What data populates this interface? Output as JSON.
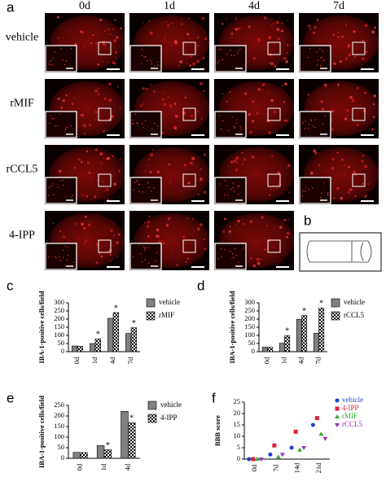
{
  "panel_a": {
    "label": "a",
    "column_labels": [
      "0d",
      "1d",
      "4d",
      "7d"
    ],
    "row_labels": [
      "vehicle",
      "rMIF",
      "rCCL5",
      "4-IPP"
    ]
  },
  "panel_b": {
    "label": "b"
  },
  "chart_data": [
    {
      "type": "bar",
      "panel_label": "c",
      "y_label": "IBA-1-positive cells/field",
      "categories": [
        "0d",
        "1d",
        "4d",
        "7d"
      ],
      "ylim": [
        0,
        300
      ],
      "yticks": [
        0,
        50,
        100,
        150,
        200,
        250,
        300
      ],
      "significance_label": "*",
      "series": [
        {
          "name": "vehicle",
          "color": "#808080",
          "pattern": "solid",
          "values": [
            35,
            50,
            205,
            112
          ],
          "significant": [
            false,
            false,
            false,
            false
          ]
        },
        {
          "name": "rMIF",
          "color": "#ffffff",
          "pattern": "checker",
          "values": [
            33,
            78,
            240,
            147
          ],
          "significant": [
            false,
            true,
            true,
            true
          ]
        }
      ]
    },
    {
      "type": "bar",
      "panel_label": "d",
      "y_label": "IBA-1-positive cells/field",
      "categories": [
        "0d",
        "1d",
        "4d",
        "7d"
      ],
      "ylim": [
        0,
        300
      ],
      "yticks": [
        0,
        50,
        100,
        150,
        200,
        250,
        300
      ],
      "significance_label": "*",
      "series": [
        {
          "name": "vehicle",
          "color": "#808080",
          "pattern": "solid",
          "values": [
            28,
            52,
            198,
            113
          ],
          "significant": [
            false,
            false,
            false,
            false
          ]
        },
        {
          "name": "rCCL5",
          "color": "#ffffff",
          "pattern": "checker",
          "values": [
            27,
            98,
            222,
            268
          ],
          "significant": [
            false,
            true,
            true,
            true
          ]
        }
      ]
    },
    {
      "type": "bar",
      "panel_label": "e",
      "y_label": "IBA-1-positive cells/field",
      "categories": [
        "0d",
        "1d",
        "4d"
      ],
      "ylim": [
        0,
        250
      ],
      "yticks": [
        0,
        50,
        100,
        150,
        200,
        250
      ],
      "significance_label": "*",
      "series": [
        {
          "name": "vehicle",
          "color": "#808080",
          "pattern": "solid",
          "values": [
            28,
            60,
            222
          ],
          "significant": [
            false,
            false,
            false
          ]
        },
        {
          "name": "4-IPP",
          "color": "#ffffff",
          "pattern": "checker",
          "values": [
            27,
            40,
            168
          ],
          "significant": [
            false,
            true,
            true
          ]
        }
      ]
    },
    {
      "type": "dot",
      "panel_label": "f",
      "y_label": "BBB score",
      "categories": [
        "0d",
        "7d",
        "14d",
        "21d"
      ],
      "ylim": [
        0,
        25
      ],
      "yticks": [
        0,
        5,
        10,
        15,
        20,
        25
      ],
      "series": [
        {
          "name": "vehicle",
          "color": "#1f3fd0",
          "marker": "circle",
          "values": [
            0,
            2,
            5,
            15
          ]
        },
        {
          "name": "4-IPP",
          "color": "#e0203a",
          "marker": "square",
          "values": [
            0,
            6,
            12,
            18
          ]
        },
        {
          "name": "rMIF",
          "color": "#30b030",
          "marker": "triangle",
          "values": [
            0,
            1,
            4,
            11
          ]
        },
        {
          "name": "rCCL5",
          "color": "#9a30c0",
          "marker": "triangle-down",
          "values": [
            0,
            2,
            5,
            9
          ]
        }
      ]
    }
  ]
}
